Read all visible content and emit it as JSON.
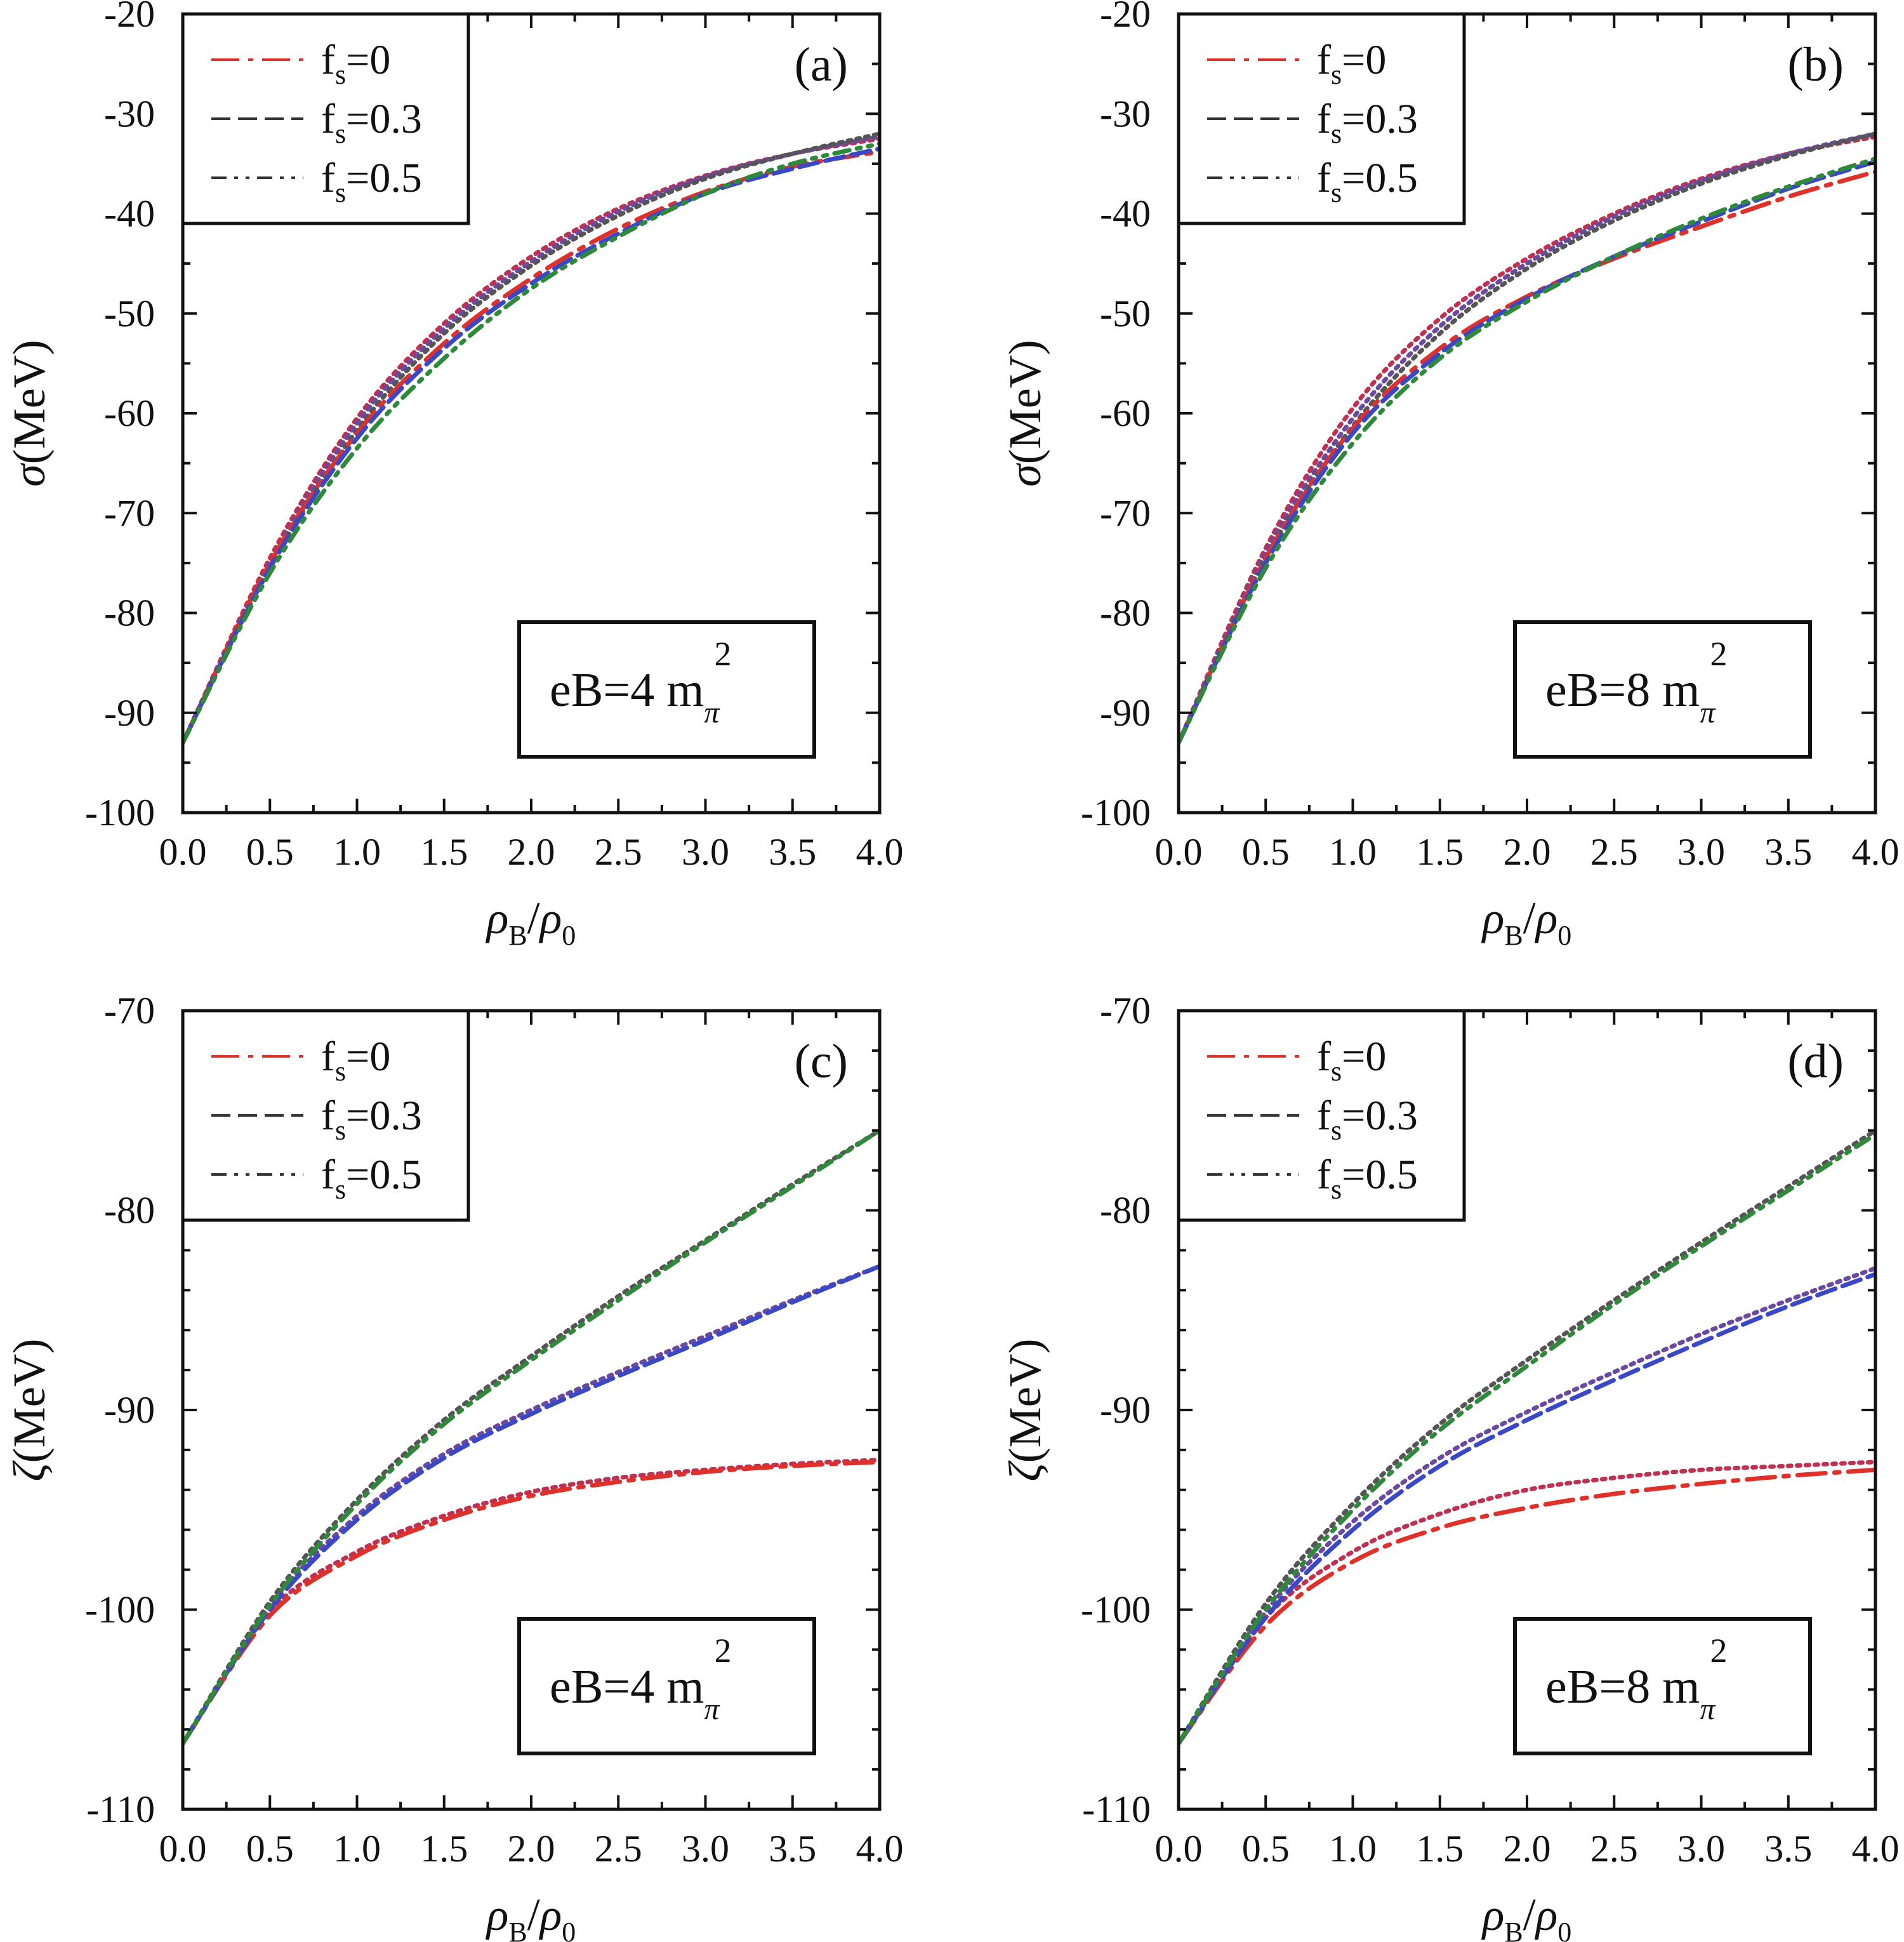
{
  "figure": {
    "legend_prefix": "f",
    "legend_subscript": "s",
    "xlabel": {
      "main": "ρ",
      "sub1": "B",
      "slash": "/",
      "main2": "ρ",
      "sub2": "0"
    },
    "ylabel_sigma": {
      "symbol": "σ",
      "unit": "(MeV)"
    },
    "ylabel_zeta": {
      "symbol": "ζ",
      "unit": "(MeV)"
    }
  },
  "colors": {
    "fs0": "#e0302a",
    "fs03": "#3a48c8",
    "fs05": "#2e8a3a",
    "dotted": "#8a3a5a",
    "dotted_gray": "#555555"
  },
  "chart_data": [
    {
      "panel": "(a)",
      "type": "line",
      "quantity": "σ",
      "field": "eB=4 m_π^2",
      "field_text": {
        "main": "eB=4 m",
        "sub": "π",
        "sup": "2"
      },
      "xlim": [
        0.0,
        4.0
      ],
      "ylim": [
        -100,
        -20
      ],
      "xticks": [
        "0.0",
        "0.5",
        "1.0",
        "1.5",
        "2.0",
        "2.5",
        "3.0",
        "3.5",
        "4.0"
      ],
      "yticks": [
        "-100",
        "-90",
        "-80",
        "-70",
        "-60",
        "-50",
        "-40",
        "-30",
        "-20"
      ],
      "legend": [
        "=0",
        "=0.3",
        "=0.5"
      ],
      "x": [
        0,
        0.5,
        1.0,
        1.5,
        2.0,
        2.5,
        3.0,
        3.5,
        4.0
      ],
      "series": [
        {
          "name": "=0",
          "style": "dashdot",
          "values": [
            -93,
            -75,
            -62,
            -53,
            -46.5,
            -41.5,
            -37.8,
            -35.3,
            -33.8
          ]
        },
        {
          "name": "=0.3",
          "style": "dashed",
          "values": [
            -93,
            -75.5,
            -62.5,
            -53.5,
            -47,
            -42,
            -38,
            -35.5,
            -33.5
          ]
        },
        {
          "name": "=0.5",
          "style": "dashdot2",
          "values": [
            -93,
            -76,
            -63.5,
            -54.5,
            -47.5,
            -42.3,
            -38,
            -35,
            -33
          ]
        },
        {
          "name": "",
          "style": "dotted",
          "values": [
            -93,
            -74.5,
            -60.5,
            -51,
            -44.3,
            -39.5,
            -36.2,
            -34,
            -32.5
          ]
        },
        {
          "name": "",
          "style": "dotted",
          "values": [
            -93,
            -75,
            -61,
            -51.5,
            -44.8,
            -39.8,
            -36.3,
            -34,
            -32.3
          ]
        },
        {
          "name": "",
          "style": "dotted",
          "values": [
            -93,
            -75.5,
            -61.7,
            -52,
            -45.2,
            -40.2,
            -36.5,
            -34,
            -32
          ]
        }
      ]
    },
    {
      "panel": "(b)",
      "type": "line",
      "quantity": "σ",
      "field": "eB=8 m_π^2",
      "field_text": {
        "main": "eB=8 m",
        "sub": "π",
        "sup": "2"
      },
      "xlim": [
        0.0,
        4.0
      ],
      "ylim": [
        -100,
        -20
      ],
      "xticks": [
        "0.0",
        "0.5",
        "1.0",
        "1.5",
        "2.0",
        "2.5",
        "3.0",
        "3.5",
        "4.0"
      ],
      "yticks": [
        "-100",
        "-90",
        "-80",
        "-70",
        "-60",
        "-50",
        "-40",
        "-30",
        "-20"
      ],
      "legend": [
        "=0",
        "=0.3",
        "=0.5"
      ],
      "x": [
        0,
        0.5,
        1.0,
        1.5,
        2.0,
        2.5,
        3.0,
        3.5,
        4.0
      ],
      "series": [
        {
          "name": "=0",
          "style": "dashdot",
          "values": [
            -93,
            -74.5,
            -61.5,
            -53.5,
            -48.3,
            -44.5,
            -41.3,
            -38.3,
            -35.8
          ]
        },
        {
          "name": "=0.3",
          "style": "dashed",
          "values": [
            -93,
            -75,
            -62,
            -54,
            -48.5,
            -44.3,
            -40.8,
            -37.5,
            -34.8
          ]
        },
        {
          "name": "=0.5",
          "style": "dashdot2",
          "values": [
            -93,
            -75.5,
            -63,
            -54.5,
            -48.8,
            -44.3,
            -40.5,
            -37.3,
            -34.5
          ]
        },
        {
          "name": "",
          "style": "dotted",
          "values": [
            -93,
            -73.5,
            -59.5,
            -50.5,
            -44.5,
            -40,
            -36.5,
            -34,
            -32.3
          ]
        },
        {
          "name": "",
          "style": "dotted",
          "values": [
            -93,
            -74,
            -60.5,
            -51.3,
            -45,
            -40.3,
            -36.7,
            -34,
            -32
          ]
        },
        {
          "name": "",
          "style": "dotted",
          "values": [
            -93,
            -74.5,
            -61.3,
            -52,
            -45.5,
            -40.7,
            -37,
            -34.2,
            -32
          ]
        }
      ]
    },
    {
      "panel": "(c)",
      "type": "line",
      "quantity": "ζ",
      "field": "eB=4 m_π^2",
      "field_text": {
        "main": "eB=4 m",
        "sub": "π",
        "sup": "2"
      },
      "xlim": [
        0.0,
        4.0
      ],
      "ylim": [
        -110,
        -70
      ],
      "xticks": [
        "0.0",
        "0.5",
        "1.0",
        "1.5",
        "2.0",
        "2.5",
        "3.0",
        "3.5",
        "4.0"
      ],
      "yticks": [
        "-110",
        "-100",
        "-90",
        "-80",
        "-70"
      ],
      "legend": [
        "=0",
        "=0.3",
        "=0.5"
      ],
      "x": [
        0,
        0.5,
        1.0,
        1.5,
        2.0,
        2.5,
        3.0,
        3.5,
        4.0
      ],
      "series": [
        {
          "name": "=0",
          "style": "dashdot",
          "values": [
            -106.7,
            -100.3,
            -97.3,
            -95.5,
            -94.3,
            -93.6,
            -93.1,
            -92.8,
            -92.6
          ]
        },
        {
          "name": "=0.3",
          "style": "dashed",
          "values": [
            -106.7,
            -100,
            -95.5,
            -92.4,
            -90.2,
            -88.3,
            -86.5,
            -84.6,
            -82.8
          ]
        },
        {
          "name": "=0.5",
          "style": "dashdot2",
          "values": [
            -106.7,
            -99.8,
            -94.7,
            -90.7,
            -87.5,
            -84.5,
            -81.6,
            -78.8,
            -76
          ]
        },
        {
          "name": "",
          "style": "dotted",
          "values": [
            -106.7,
            -100.1,
            -97.1,
            -95.3,
            -94.1,
            -93.4,
            -93,
            -92.7,
            -92.5
          ]
        },
        {
          "name": "",
          "style": "dotted",
          "values": [
            -106.7,
            -99.8,
            -95.3,
            -92.2,
            -90,
            -88.1,
            -86.3,
            -84.5,
            -82.8
          ]
        },
        {
          "name": "",
          "style": "dotted",
          "values": [
            -106.7,
            -99.6,
            -94.5,
            -90.5,
            -87.3,
            -84.3,
            -81.5,
            -78.7,
            -76
          ]
        }
      ]
    },
    {
      "panel": "(d)",
      "type": "line",
      "quantity": "ζ",
      "field": "eB=8 m_π^2",
      "field_text": {
        "main": "eB=8 m",
        "sub": "π",
        "sup": "2"
      },
      "xlim": [
        0.0,
        4.0
      ],
      "ylim": [
        -110,
        -70
      ],
      "xticks": [
        "0.0",
        "0.5",
        "1.0",
        "1.5",
        "2.0",
        "2.5",
        "3.0",
        "3.5",
        "4.0"
      ],
      "yticks": [
        "-110",
        "-100",
        "-90",
        "-80",
        "-70"
      ],
      "legend": [
        "=0",
        "=0.3",
        "=0.5"
      ],
      "x": [
        0,
        0.5,
        1.0,
        1.5,
        2.0,
        2.5,
        3.0,
        3.5,
        4.0
      ],
      "series": [
        {
          "name": "=0",
          "style": "dashdot",
          "values": [
            -106.7,
            -100.8,
            -97.6,
            -95.9,
            -94.9,
            -94.2,
            -93.7,
            -93.3,
            -93
          ]
        },
        {
          "name": "=0.3",
          "style": "dashed",
          "values": [
            -106.7,
            -100.4,
            -96,
            -92.8,
            -90.5,
            -88.5,
            -86.6,
            -84.8,
            -83.2
          ]
        },
        {
          "name": "=0.5",
          "style": "dashdot2",
          "values": [
            -106.7,
            -100,
            -95,
            -91,
            -87.8,
            -84.7,
            -81.8,
            -79,
            -76.2
          ]
        },
        {
          "name": "",
          "style": "dotted",
          "values": [
            -106.7,
            -100.4,
            -97.1,
            -95.2,
            -94,
            -93.4,
            -93,
            -92.8,
            -92.6
          ]
        },
        {
          "name": "",
          "style": "dotted",
          "values": [
            -106.7,
            -100.1,
            -95.6,
            -92.4,
            -90.1,
            -88.1,
            -86.2,
            -84.5,
            -82.9
          ]
        },
        {
          "name": "",
          "style": "dotted",
          "values": [
            -106.7,
            -99.7,
            -94.7,
            -90.7,
            -87.5,
            -84.5,
            -81.6,
            -78.8,
            -76
          ]
        }
      ]
    }
  ]
}
